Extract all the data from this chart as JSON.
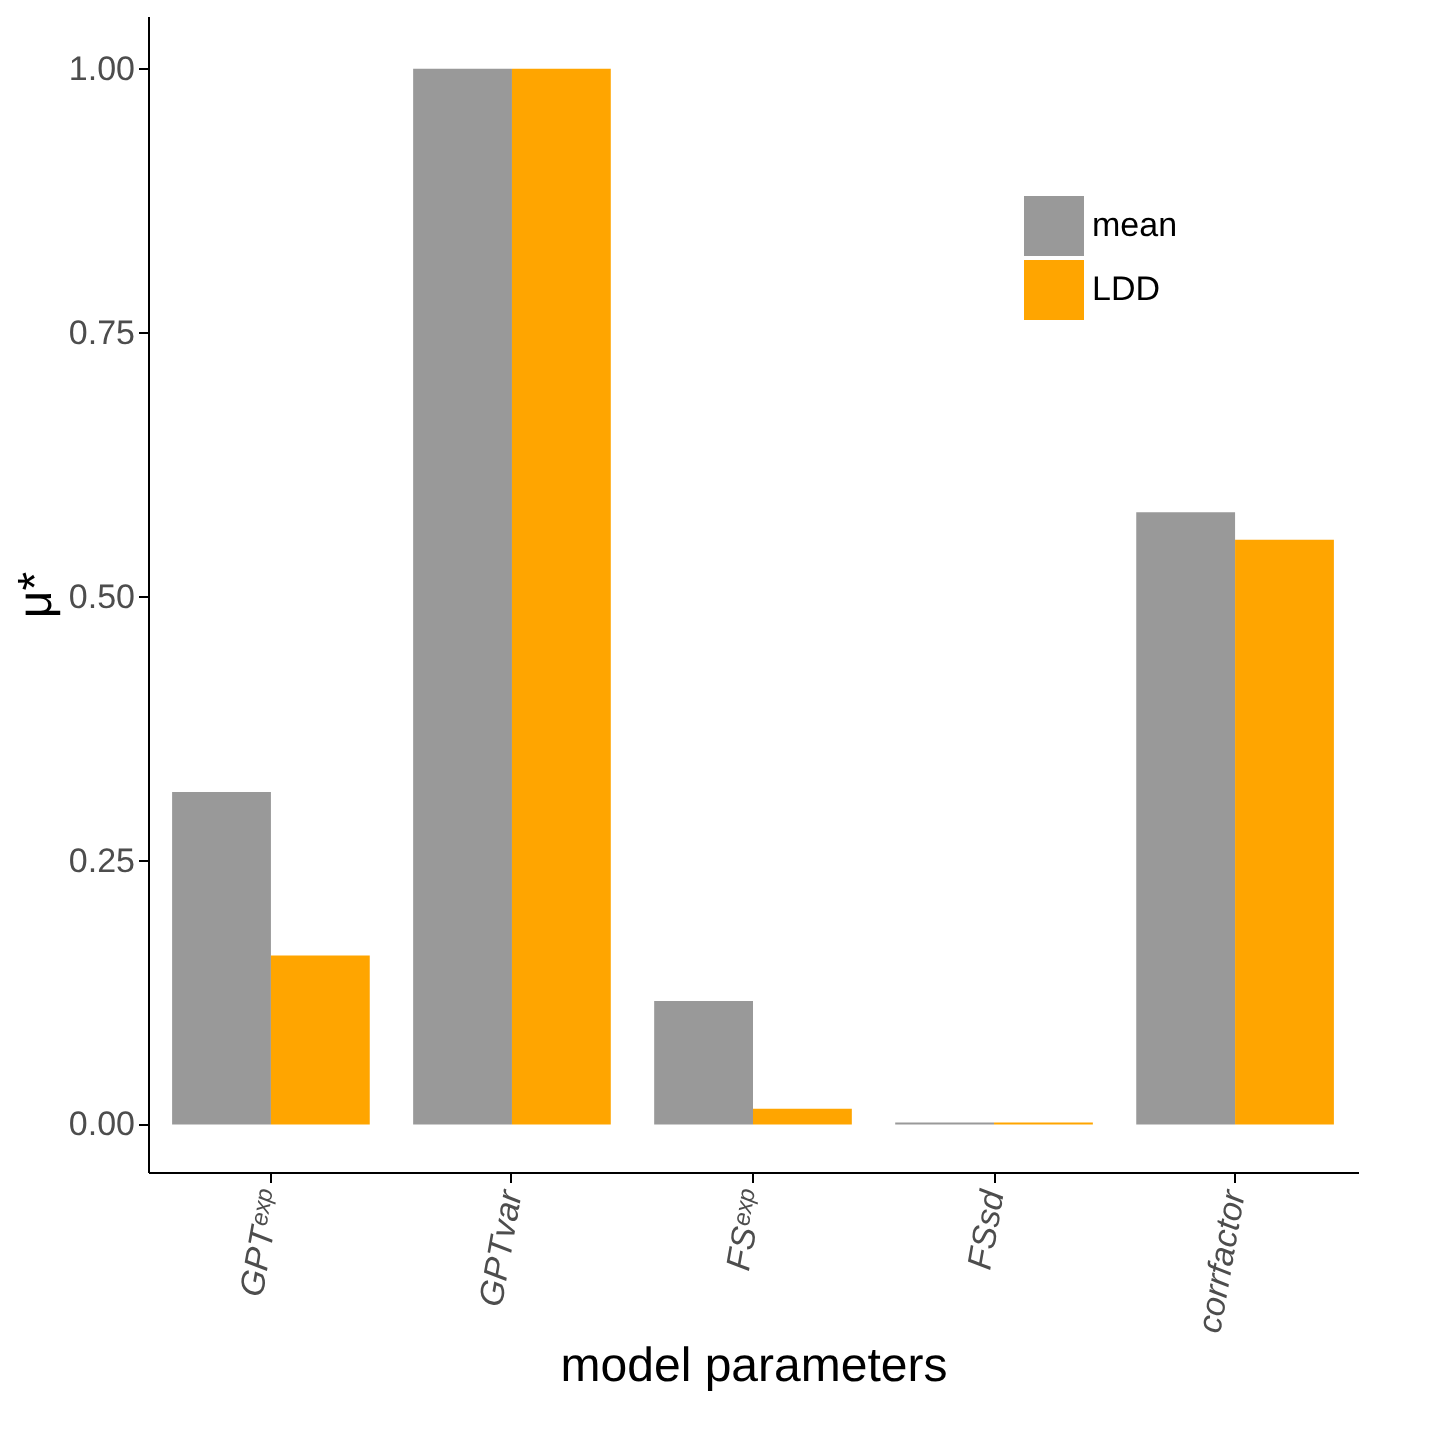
{
  "chart_data": {
    "type": "bar",
    "xlabel": "model parameters",
    "ylabel": "μ*",
    "categories": [
      "GPTᵉˣᵖ",
      "GPTvar",
      "FSᵉˣᵖ",
      "FSsd",
      "corrfactor"
    ],
    "series": [
      {
        "name": "mean",
        "color": "#999999",
        "values": [
          0.315,
          1.0,
          0.117,
          0.002,
          0.58
        ]
      },
      {
        "name": "LDD",
        "color": "#ffa500",
        "values": [
          0.16,
          1.0,
          0.015,
          0.002,
          0.554
        ]
      }
    ],
    "ylim": [
      -0.045,
      1.05
    ],
    "yticks": [
      {
        "value": 0,
        "label": "0.00"
      },
      {
        "value": 0.25,
        "label": "0.25"
      },
      {
        "value": 0.5,
        "label": "0.50"
      },
      {
        "value": 0.75,
        "label": "0.75"
      },
      {
        "value": 1,
        "label": "1.00"
      }
    ],
    "grid": false,
    "legend": "top right"
  }
}
